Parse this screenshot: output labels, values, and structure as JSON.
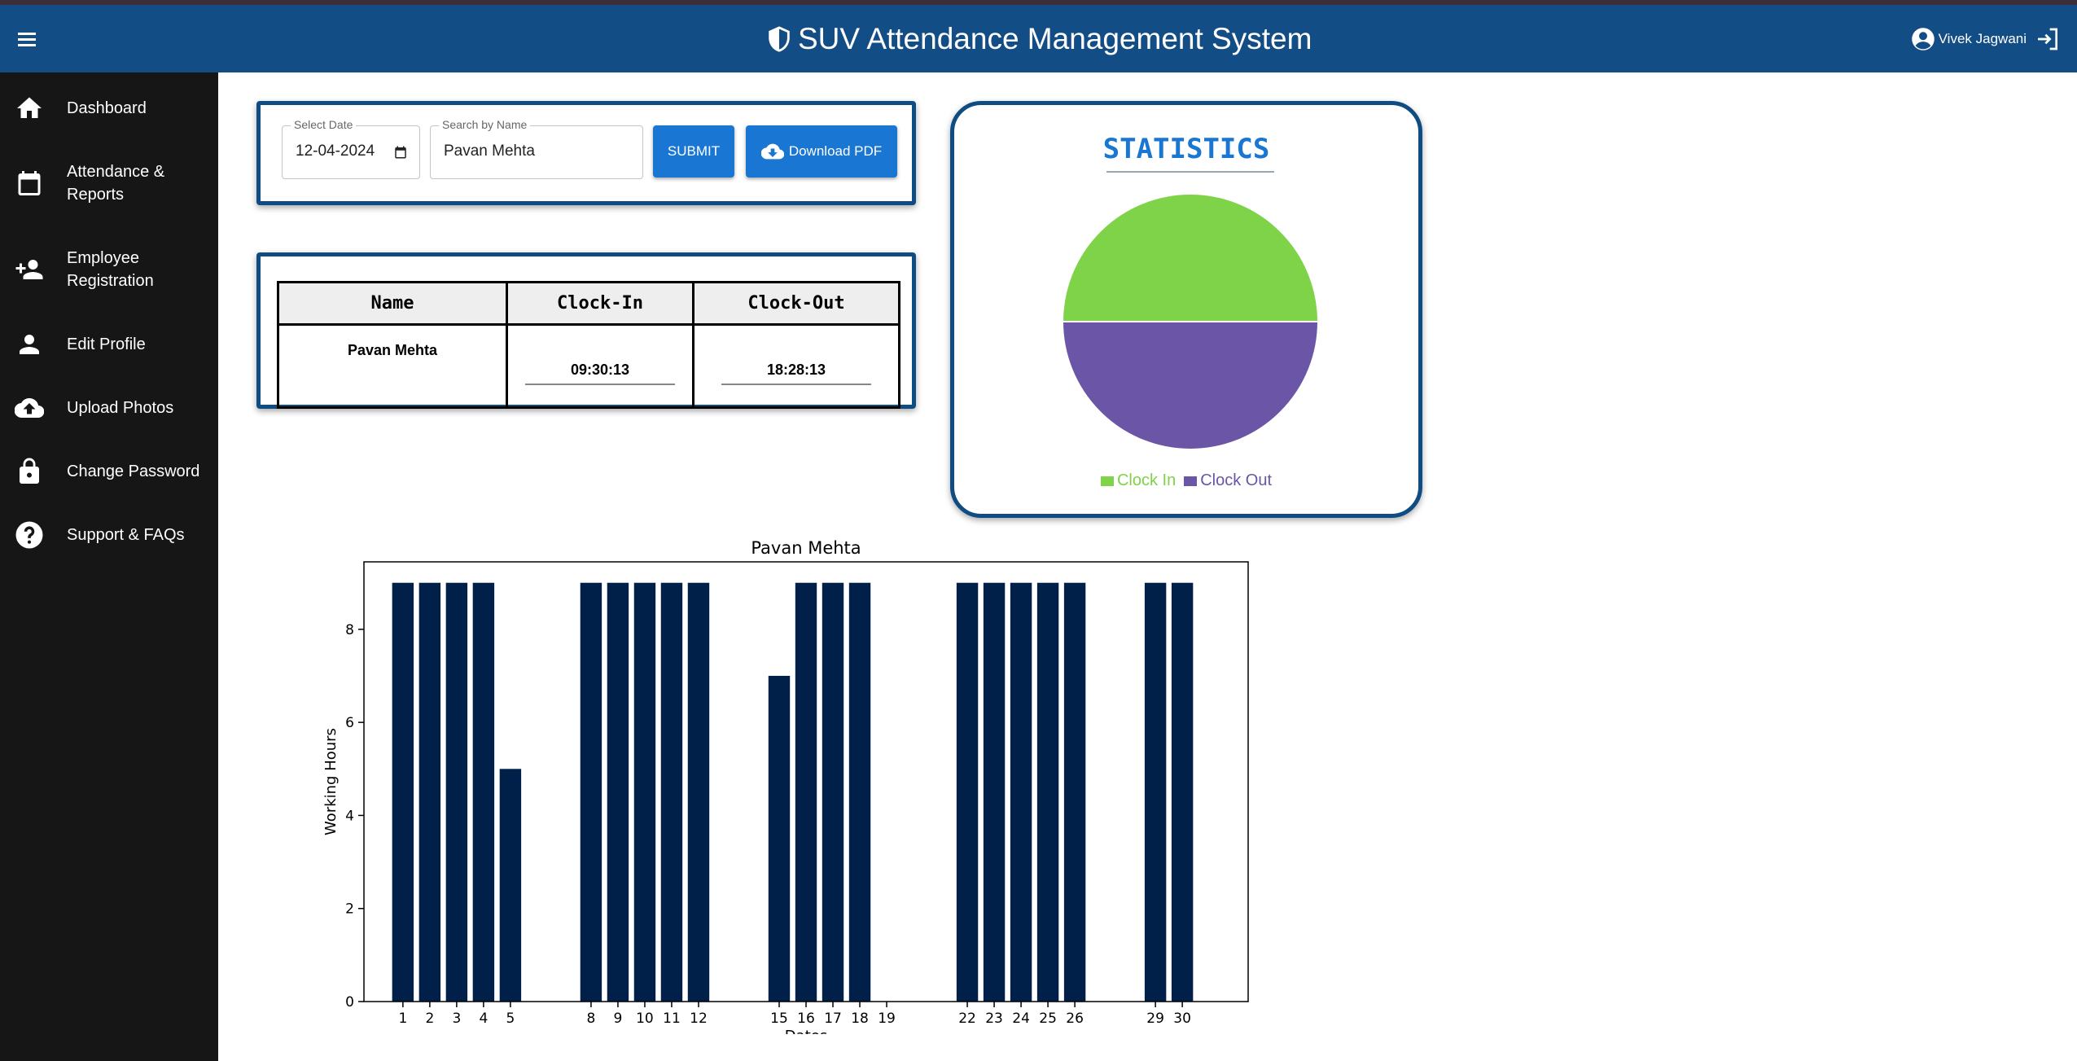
{
  "header": {
    "title": "SUV Attendance Management System",
    "user_name": "Vivek Jagwani",
    "brand_color": "#134d85"
  },
  "sidebar": {
    "items": [
      {
        "label": "Dashboard",
        "icon": "home-icon"
      },
      {
        "label": "Attendance & Reports",
        "icon": "calendar-icon"
      },
      {
        "label": "Employee Registration",
        "icon": "person-add-icon"
      },
      {
        "label": "Edit Profile",
        "icon": "person-icon"
      },
      {
        "label": "Upload Photos",
        "icon": "cloud-upload-icon"
      },
      {
        "label": "Change Password",
        "icon": "lock-icon"
      },
      {
        "label": "Support & FAQs",
        "icon": "help-icon"
      }
    ]
  },
  "filters": {
    "date_label": "Select Date",
    "date_value": "12-04-2024",
    "name_label": "Search by Name",
    "name_value": "Pavan Mehta",
    "submit_label": "SUBMIT",
    "download_label": "Download PDF"
  },
  "attendance_table": {
    "headers": [
      "Name",
      "Clock-In",
      "Clock-Out"
    ],
    "rows": [
      {
        "name": "Pavan Mehta",
        "clock_in": "09:30:13",
        "clock_out": "18:28:13"
      }
    ]
  },
  "statistics": {
    "title": "STATISTICS",
    "legend": [
      {
        "label": "Clock In",
        "color": "#7ed348"
      },
      {
        "label": "Clock Out",
        "color": "#6a55a6"
      }
    ]
  },
  "chart_data": [
    {
      "type": "pie",
      "labels": [
        "Clock In",
        "Clock Out"
      ],
      "values": [
        50,
        50
      ],
      "colors": [
        "#7ed348",
        "#6a55a6"
      ],
      "legend": "bottom"
    },
    {
      "type": "bar",
      "title": "Pavan Mehta",
      "xlabel": "Dates",
      "ylabel": "Working Hours",
      "categories": [
        "1",
        "2",
        "3",
        "4",
        "5",
        "8",
        "9",
        "10",
        "11",
        "12",
        "15",
        "16",
        "17",
        "18",
        "19",
        "22",
        "23",
        "24",
        "25",
        "26",
        "29",
        "30"
      ],
      "x": [
        1,
        2,
        3,
        4,
        5,
        8,
        9,
        10,
        11,
        12,
        15,
        16,
        17,
        18,
        19,
        22,
        23,
        24,
        25,
        26,
        29,
        30
      ],
      "values": [
        9,
        9,
        9,
        9,
        5,
        9,
        9,
        9,
        9,
        9,
        7,
        9,
        9,
        9,
        0,
        9,
        9,
        9,
        9,
        9,
        9,
        9
      ],
      "yticks": [
        0,
        2,
        4,
        6,
        8
      ],
      "ylim": [
        0,
        9.45
      ],
      "xlim": [
        -0.45,
        32.45
      ],
      "bar_color": "#00204a",
      "grid": false
    }
  ]
}
